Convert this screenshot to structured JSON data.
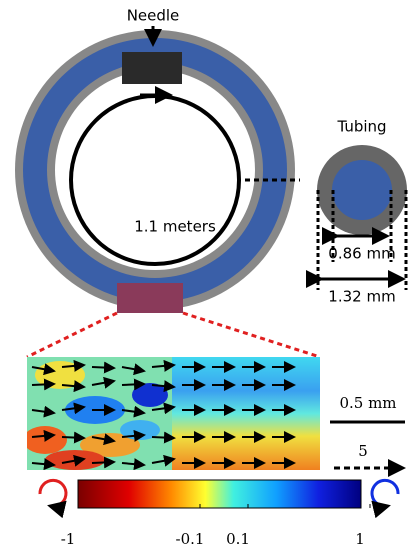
{
  "labels": {
    "needle": "Needle",
    "length": "1.1 meters",
    "tubing": "Tubing",
    "inner_diameter": "0.86 mm",
    "outer_diameter": "1.32 mm"
  },
  "scale_bars": {
    "length": "0.5 mm",
    "velocity": "5"
  },
  "colorbar": {
    "ticks": [
      -1,
      -0.1,
      0.1,
      1
    ]
  }
}
